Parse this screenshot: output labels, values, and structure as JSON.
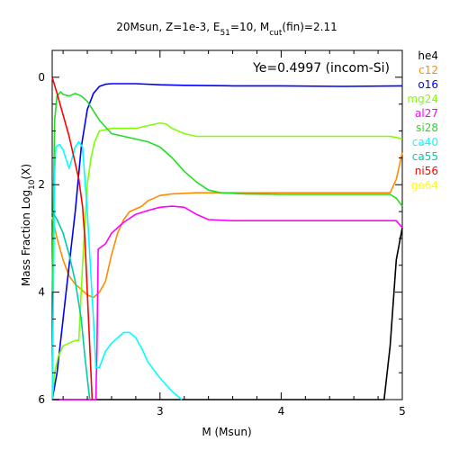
{
  "chart_data": {
    "type": "line",
    "title_parts": [
      {
        "t": "20Msun, Z=1e-3, E"
      },
      {
        "t": "51",
        "sub": true
      },
      {
        "t": "=10, M"
      },
      {
        "t": "cut",
        "sub": true
      },
      {
        "t": "(fin)=2.11"
      }
    ],
    "xlabel": "M (Msun)",
    "ylabel_parts": [
      {
        "t": "Mass Fraction Log"
      },
      {
        "t": "10",
        "sub": true
      },
      {
        "t": "(X)"
      }
    ],
    "annotation": "Ye=0.4997 (incom-Si)",
    "xlim": [
      2.11,
      5.0
    ],
    "ylim": [
      -6,
      0.5
    ],
    "x_ticks": [
      3,
      4,
      5
    ],
    "x_tick_labels": [
      "3",
      "4",
      "5"
    ],
    "y_ticks": [
      0,
      -2,
      -4,
      -6
    ],
    "y_tick_labels": [
      "0",
      "2",
      "4",
      "6"
    ],
    "grid": false,
    "legend_position": "right",
    "series": [
      {
        "name": "he4",
        "color": "#000000",
        "points": [
          [
            2.11,
            -6.0
          ],
          [
            2.15,
            -6.0
          ],
          [
            2.2,
            -6.0
          ],
          [
            2.3,
            -6.0
          ],
          [
            4.85,
            -6.0
          ],
          [
            4.9,
            -5.0
          ],
          [
            4.95,
            -3.4
          ],
          [
            5.0,
            -2.8
          ]
        ]
      },
      {
        "name": "c12",
        "color": "#ff8c00",
        "points": [
          [
            2.11,
            -2.6
          ],
          [
            2.15,
            -3.0
          ],
          [
            2.2,
            -3.4
          ],
          [
            2.25,
            -3.7
          ],
          [
            2.3,
            -3.85
          ],
          [
            2.35,
            -3.95
          ],
          [
            2.4,
            -4.05
          ],
          [
            2.45,
            -4.1
          ],
          [
            2.5,
            -4.0
          ],
          [
            2.55,
            -3.8
          ],
          [
            2.6,
            -3.3
          ],
          [
            2.65,
            -2.9
          ],
          [
            2.7,
            -2.65
          ],
          [
            2.75,
            -2.5
          ],
          [
            2.8,
            -2.45
          ],
          [
            2.85,
            -2.4
          ],
          [
            2.9,
            -2.3
          ],
          [
            2.95,
            -2.25
          ],
          [
            3.0,
            -2.2
          ],
          [
            3.1,
            -2.17
          ],
          [
            3.3,
            -2.15
          ],
          [
            3.6,
            -2.15
          ],
          [
            4.0,
            -2.15
          ],
          [
            4.5,
            -2.15
          ],
          [
            4.9,
            -2.15
          ],
          [
            4.95,
            -1.9
          ],
          [
            5.0,
            -1.4
          ]
        ]
      },
      {
        "name": "o16",
        "color": "#0000ff",
        "points": [
          [
            2.11,
            -6.0
          ],
          [
            2.15,
            -5.5
          ],
          [
            2.2,
            -4.5
          ],
          [
            2.25,
            -3.5
          ],
          [
            2.3,
            -2.5
          ],
          [
            2.35,
            -1.3
          ],
          [
            2.4,
            -0.6
          ],
          [
            2.45,
            -0.3
          ],
          [
            2.5,
            -0.17
          ],
          [
            2.55,
            -0.13
          ],
          [
            2.6,
            -0.12
          ],
          [
            2.8,
            -0.12
          ],
          [
            3.0,
            -0.14
          ],
          [
            3.2,
            -0.15
          ],
          [
            3.6,
            -0.16
          ],
          [
            4.0,
            -0.16
          ],
          [
            4.5,
            -0.17
          ],
          [
            5.0,
            -0.16
          ]
        ]
      },
      {
        "name": "mg24",
        "color": "#7fff00",
        "points": [
          [
            2.11,
            -6.0
          ],
          [
            2.13,
            -5.5
          ],
          [
            2.16,
            -5.2
          ],
          [
            2.2,
            -5.0
          ],
          [
            2.25,
            -4.95
          ],
          [
            2.3,
            -4.9
          ],
          [
            2.33,
            -4.9
          ],
          [
            2.36,
            -3.5
          ],
          [
            2.4,
            -2.0
          ],
          [
            2.43,
            -1.5
          ],
          [
            2.46,
            -1.2
          ],
          [
            2.5,
            -1.0
          ],
          [
            2.6,
            -0.95
          ],
          [
            2.8,
            -0.95
          ],
          [
            2.9,
            -0.9
          ],
          [
            3.0,
            -0.85
          ],
          [
            3.05,
            -0.87
          ],
          [
            3.1,
            -0.95
          ],
          [
            3.2,
            -1.05
          ],
          [
            3.3,
            -1.1
          ],
          [
            3.6,
            -1.1
          ],
          [
            4.0,
            -1.1
          ],
          [
            4.5,
            -1.1
          ],
          [
            4.9,
            -1.1
          ],
          [
            4.95,
            -1.12
          ],
          [
            5.0,
            -1.15
          ]
        ]
      },
      {
        "name": "al27",
        "color": "#ff00ff",
        "points": [
          [
            2.11,
            -6.0
          ],
          [
            2.47,
            -6.0
          ],
          [
            2.48,
            -5.0
          ],
          [
            2.49,
            -3.2
          ],
          [
            2.55,
            -3.1
          ],
          [
            2.6,
            -2.9
          ],
          [
            2.7,
            -2.7
          ],
          [
            2.8,
            -2.55
          ],
          [
            2.9,
            -2.48
          ],
          [
            3.0,
            -2.42
          ],
          [
            3.1,
            -2.4
          ],
          [
            3.2,
            -2.42
          ],
          [
            3.3,
            -2.55
          ],
          [
            3.4,
            -2.65
          ],
          [
            3.6,
            -2.67
          ],
          [
            4.0,
            -2.67
          ],
          [
            4.5,
            -2.67
          ],
          [
            4.95,
            -2.67
          ],
          [
            5.0,
            -2.8
          ]
        ]
      },
      {
        "name": "si28",
        "color": "#22dd22",
        "points": [
          [
            2.11,
            -4.0
          ],
          [
            2.13,
            -0.8
          ],
          [
            2.15,
            -0.35
          ],
          [
            2.18,
            -0.27
          ],
          [
            2.2,
            -0.32
          ],
          [
            2.25,
            -0.35
          ],
          [
            2.3,
            -0.3
          ],
          [
            2.35,
            -0.35
          ],
          [
            2.4,
            -0.45
          ],
          [
            2.5,
            -0.8
          ],
          [
            2.6,
            -1.05
          ],
          [
            2.7,
            -1.1
          ],
          [
            2.8,
            -1.15
          ],
          [
            2.9,
            -1.2
          ],
          [
            3.0,
            -1.3
          ],
          [
            3.1,
            -1.5
          ],
          [
            3.2,
            -1.75
          ],
          [
            3.3,
            -1.95
          ],
          [
            3.4,
            -2.1
          ],
          [
            3.5,
            -2.15
          ],
          [
            3.7,
            -2.17
          ],
          [
            4.0,
            -2.18
          ],
          [
            4.5,
            -2.18
          ],
          [
            4.9,
            -2.18
          ],
          [
            4.95,
            -2.25
          ],
          [
            5.0,
            -2.4
          ]
        ]
      },
      {
        "name": "ca40",
        "color": "#00ffff",
        "points": [
          [
            2.11,
            -6.0
          ],
          [
            2.12,
            -4.0
          ],
          [
            2.13,
            -1.8
          ],
          [
            2.14,
            -1.3
          ],
          [
            2.17,
            -1.25
          ],
          [
            2.2,
            -1.35
          ],
          [
            2.25,
            -1.7
          ],
          [
            2.3,
            -1.3
          ],
          [
            2.33,
            -1.2
          ],
          [
            2.36,
            -1.3
          ],
          [
            2.4,
            -2.5
          ],
          [
            2.45,
            -4.5
          ],
          [
            2.47,
            -5.4
          ],
          [
            2.5,
            -5.4
          ],
          [
            2.55,
            -5.1
          ],
          [
            2.6,
            -4.95
          ],
          [
            2.65,
            -4.85
          ],
          [
            2.7,
            -4.75
          ],
          [
            2.75,
            -4.75
          ],
          [
            2.8,
            -4.85
          ],
          [
            2.85,
            -5.05
          ],
          [
            2.9,
            -5.3
          ],
          [
            3.0,
            -5.6
          ],
          [
            3.1,
            -5.85
          ],
          [
            3.18,
            -6.0
          ]
        ]
      },
      {
        "name": "ca55",
        "color": "#00ccaa",
        "points": [
          [
            2.11,
            -2.5
          ],
          [
            2.15,
            -2.65
          ],
          [
            2.2,
            -2.9
          ],
          [
            2.25,
            -3.3
          ],
          [
            2.3,
            -3.8
          ],
          [
            2.35,
            -4.5
          ],
          [
            2.38,
            -5.2
          ],
          [
            2.42,
            -6.0
          ]
        ]
      },
      {
        "name": "ni56",
        "color": "#ff0000",
        "points": [
          [
            2.11,
            0.0
          ],
          [
            2.15,
            -0.3
          ],
          [
            2.2,
            -0.7
          ],
          [
            2.25,
            -1.1
          ],
          [
            2.3,
            -1.6
          ],
          [
            2.33,
            -1.9
          ],
          [
            2.36,
            -2.4
          ],
          [
            2.38,
            -3.0
          ],
          [
            2.4,
            -4.0
          ],
          [
            2.42,
            -5.0
          ],
          [
            2.44,
            -6.0
          ]
        ]
      },
      {
        "name": "ge64",
        "color": "#ffff00",
        "points": []
      }
    ]
  }
}
